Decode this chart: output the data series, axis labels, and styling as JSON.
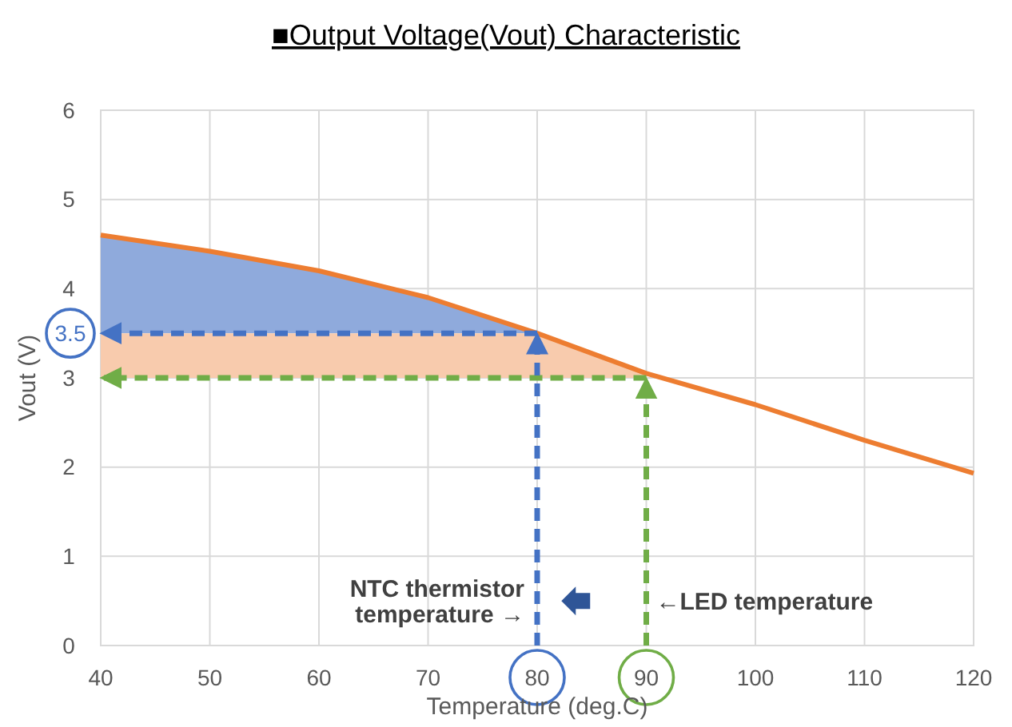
{
  "chart_data": {
    "type": "line",
    "title": "■Output Voltage(Vout) Characteristic",
    "xlabel": "Temperature (deg.C)",
    "ylabel": "Vout (V)",
    "xlim": [
      40,
      120
    ],
    "xticks": [
      40,
      50,
      60,
      70,
      80,
      90,
      100,
      110,
      120
    ],
    "ylim": [
      0,
      6
    ],
    "yticks": [
      0,
      1,
      2,
      3,
      4,
      5,
      6
    ],
    "grid": true,
    "series": [
      {
        "type": "area",
        "color": "#8faadc",
        "x": [
          40,
          50,
          60,
          70,
          80
        ],
        "values": [
          4.6,
          4.42,
          4.2,
          3.9,
          3.5
        ]
      },
      {
        "type": "area",
        "color": "#f8cbad",
        "x": [
          40,
          50,
          60,
          70,
          80,
          90
        ],
        "values": [
          3.5,
          3.5,
          3.5,
          3.5,
          3.5,
          3.05
        ]
      },
      {
        "color": "#ed7d31",
        "x": [
          40,
          50,
          60,
          70,
          80,
          90,
          100,
          110,
          120
        ],
        "values": [
          4.6,
          4.42,
          4.2,
          3.9,
          3.5,
          3.05,
          2.7,
          2.3,
          1.93
        ]
      }
    ],
    "ref_lines": [
      {
        "axis": "y",
        "value": 3.5,
        "label": "3.5",
        "color": "#4472c4",
        "line_style": "dashed"
      },
      {
        "axis": "y",
        "value": 3,
        "color": "#70ad47",
        "line_style": "dashed"
      },
      {
        "axis": "x",
        "value": 80,
        "color": "#4472c4",
        "line_style": "dashed"
      },
      {
        "axis": "x",
        "value": 90,
        "color": "#70ad47",
        "line_style": "dashed"
      }
    ],
    "annotations": [
      {
        "text": "NTC thermistor temperature →",
        "x": 80,
        "y": 0.5
      },
      {
        "text": "←LED temperature",
        "x": 90,
        "y": 0.5
      }
    ]
  }
}
